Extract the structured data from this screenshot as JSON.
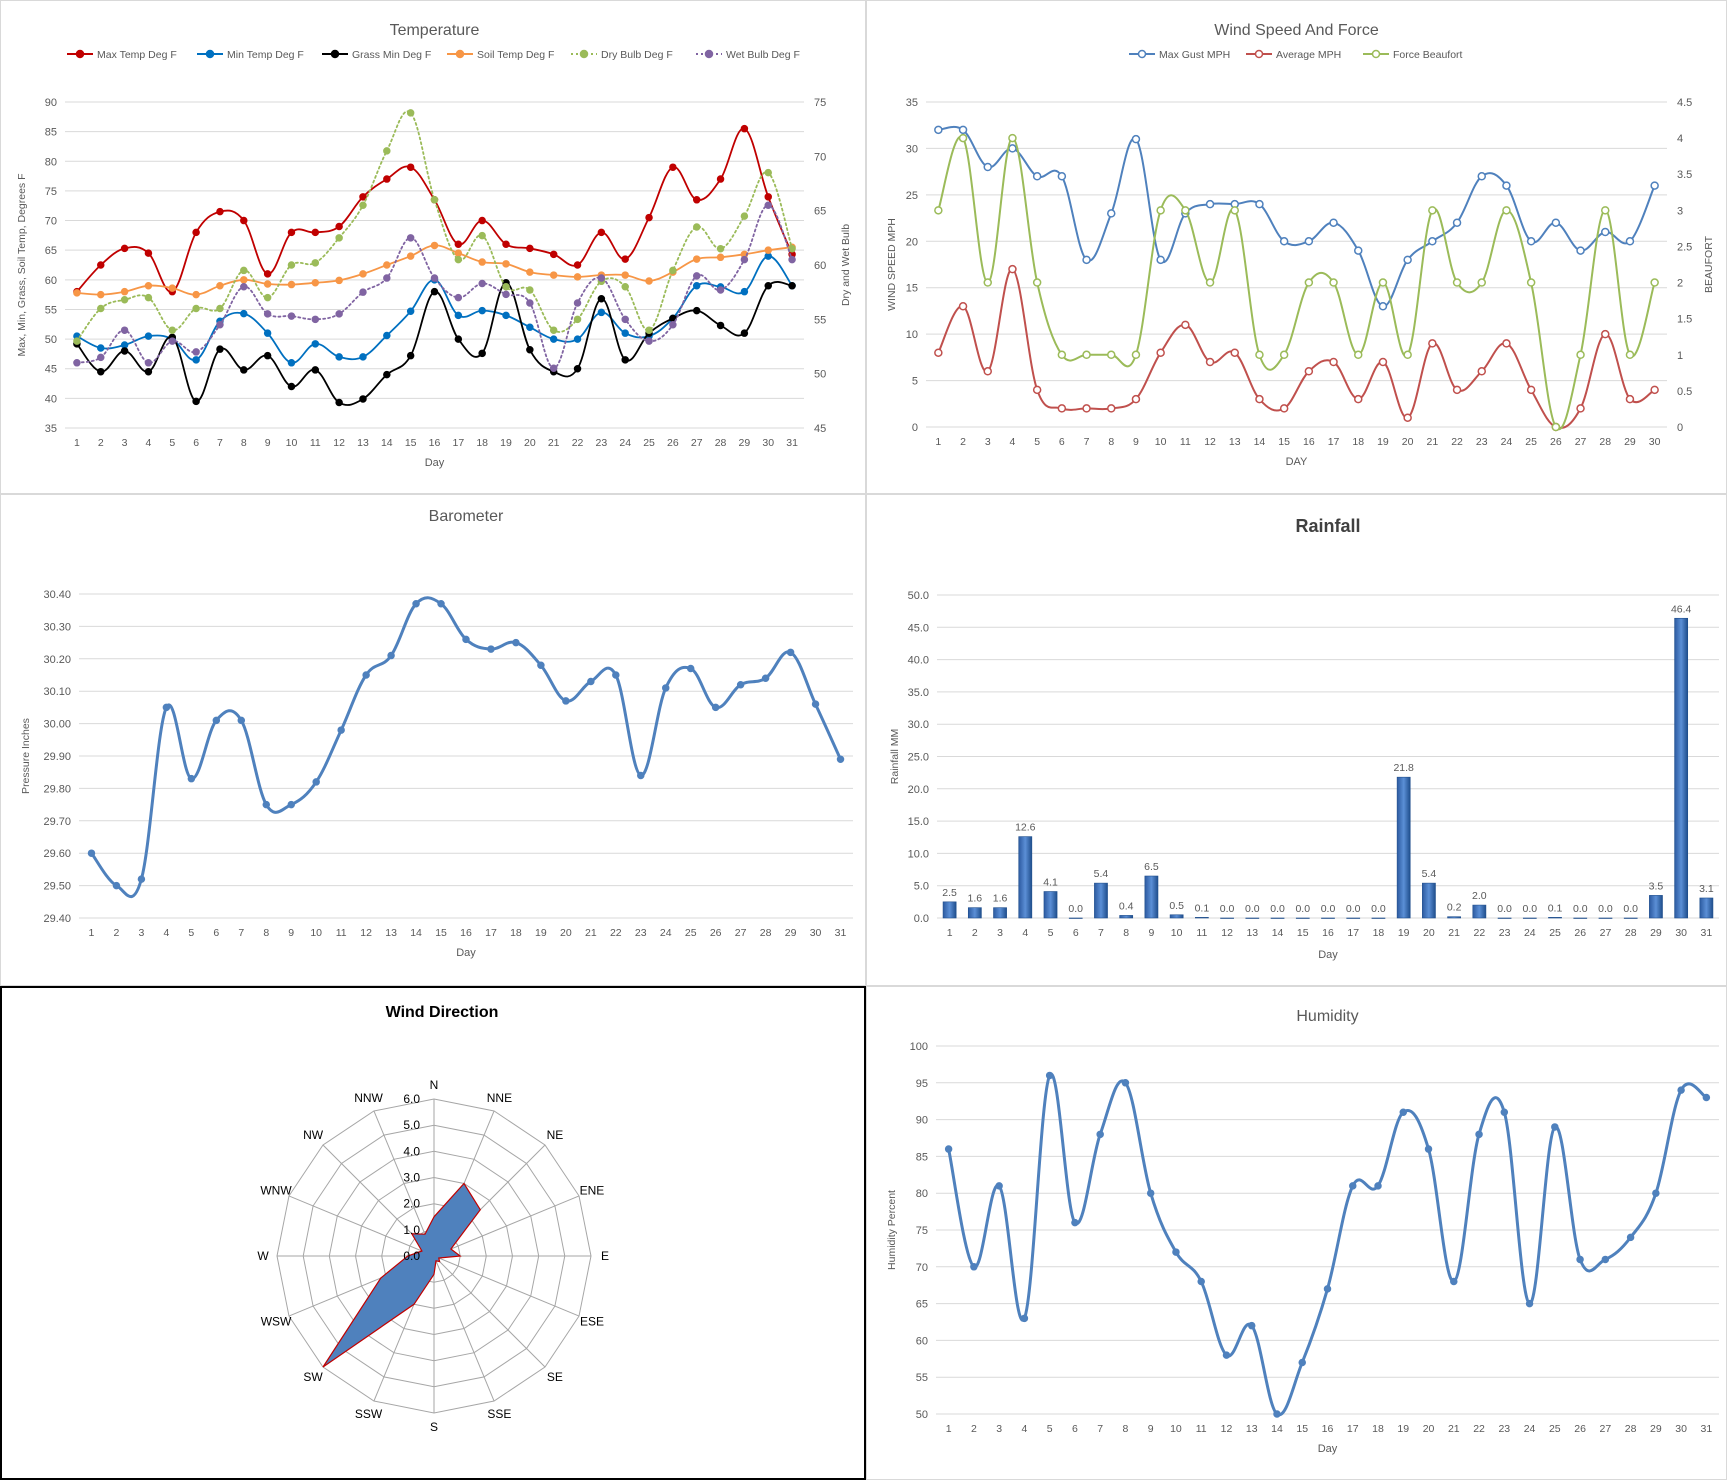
{
  "colors": {
    "grid": "#d9d9d9",
    "axis": "#bfbfbf",
    "text": "#595959",
    "blue": "#4f81bd",
    "red": "#c0504d",
    "green": "#9bbb59",
    "orange": "#f79646",
    "purple": "#8064a2",
    "black": "#000000",
    "temp_red": "#c00000",
    "temp_blue": "#0070c0"
  },
  "chart_data": [
    {
      "id": "temperature",
      "type": "line",
      "title": "Temperature",
      "xlabel": "Day",
      "ylabel": "Max, Min, Grass, Soil Temp, Degrees F",
      "y2label": "Dry and Wet Bulb",
      "x": [
        1,
        2,
        3,
        4,
        5,
        6,
        7,
        8,
        9,
        10,
        11,
        12,
        13,
        14,
        15,
        16,
        17,
        18,
        19,
        20,
        21,
        22,
        23,
        24,
        25,
        26,
        27,
        28,
        29,
        30,
        31
      ],
      "ylim": [
        35,
        90
      ],
      "yticks": [
        35,
        40,
        45,
        50,
        55,
        60,
        65,
        70,
        75,
        80,
        85,
        90
      ],
      "y2lim": [
        45,
        75
      ],
      "y2ticks": [
        45,
        50,
        55,
        60,
        65,
        70,
        75
      ],
      "legend": "top",
      "series": [
        {
          "name": "Max Temp Deg F",
          "axis": "left",
          "color": "#c00000",
          "dash": false,
          "values": [
            58,
            62.5,
            65.3,
            64.5,
            58,
            68,
            71.5,
            70,
            61,
            68,
            68,
            69,
            74,
            77,
            79,
            73.5,
            66,
            70,
            66,
            65.3,
            64.3,
            62.5,
            68,
            63.5,
            70.5,
            79,
            73.5,
            77,
            85.5,
            74,
            64.3
          ]
        },
        {
          "name": "Min Temp Deg F",
          "axis": "left",
          "color": "#0070c0",
          "dash": false,
          "values": [
            50.5,
            48.5,
            49,
            50.5,
            50,
            46.5,
            53,
            54.3,
            51,
            46,
            49.2,
            47,
            47,
            50.6,
            54.7,
            60,
            54,
            54.8,
            54,
            52,
            50,
            50,
            54.5,
            51,
            50.5,
            53.5,
            59,
            58.8,
            58,
            64,
            59
          ]
        },
        {
          "name": "Grass Min Deg F",
          "axis": "left",
          "color": "#000000",
          "dash": false,
          "values": [
            49.2,
            44.5,
            48,
            44.5,
            50.3,
            39.5,
            48.3,
            44.8,
            47.2,
            42,
            44.8,
            39.3,
            39.9,
            44,
            47.2,
            58,
            50,
            47.6,
            59.5,
            48.2,
            44.5,
            45,
            56.8,
            46.5,
            51,
            53.5,
            54.8,
            52.3,
            51,
            59,
            59
          ]
        },
        {
          "name": "Soil Temp Deg F",
          "axis": "left",
          "color": "#f79646",
          "dash": false,
          "values": [
            57.8,
            57.5,
            58,
            59,
            58.6,
            57.5,
            59,
            60,
            59.3,
            59.2,
            59.5,
            59.9,
            61,
            62.5,
            64,
            65.8,
            64.5,
            63,
            62.7,
            61.3,
            60.8,
            60.5,
            60.8,
            60.8,
            59.8,
            61.3,
            63.5,
            63.8,
            64.3,
            65,
            65.5
          ]
        },
        {
          "name": "Dry Bulb Deg F",
          "axis": "right",
          "color": "#9bbb59",
          "dash": true,
          "values": [
            53,
            56,
            56.8,
            57,
            54,
            56,
            56,
            59.5,
            57,
            60,
            60.2,
            62.5,
            65.5,
            70.5,
            74,
            66,
            60.5,
            62.7,
            58,
            57.7,
            54,
            55,
            58.5,
            58,
            54,
            59.5,
            63.5,
            61.5,
            64.5,
            68.5,
            61.5
          ]
        },
        {
          "name": "Wet Bulb Deg F",
          "axis": "right",
          "color": "#8064a2",
          "dash": true,
          "values": [
            51,
            51.5,
            54,
            51,
            53,
            52,
            54.5,
            58,
            55.5,
            55.3,
            55,
            55.5,
            57.5,
            58.8,
            62.5,
            58.8,
            57,
            58.3,
            57.3,
            56.5,
            50.5,
            56.5,
            58.8,
            55,
            53,
            54.5,
            59,
            57.7,
            60.5,
            65.5,
            60.5
          ]
        }
      ]
    },
    {
      "id": "wind",
      "type": "line",
      "title": "Wind Speed And Force",
      "xlabel": "DAY",
      "ylabel": "WIND SPEED MPH",
      "y2label": "BEAUFORT",
      "x": [
        1,
        2,
        3,
        4,
        5,
        6,
        7,
        8,
        9,
        10,
        11,
        12,
        13,
        14,
        15,
        16,
        17,
        18,
        19,
        20,
        21,
        22,
        23,
        24,
        25,
        26,
        27,
        28,
        29,
        30
      ],
      "ylim": [
        0,
        35
      ],
      "yticks": [
        0,
        5,
        10,
        15,
        20,
        25,
        30,
        35
      ],
      "y2lim": [
        0,
        4.5
      ],
      "y2ticks": [
        "0",
        "0.5",
        "1",
        "1.5",
        "2",
        "2.5",
        "3",
        "3.5",
        "4",
        "4.5"
      ],
      "legend": "top",
      "series": [
        {
          "name": "Max Gust MPH",
          "axis": "left",
          "color": "#4f81bd",
          "values": [
            32,
            32,
            28,
            30,
            27,
            27,
            18,
            23,
            31,
            18,
            23,
            24,
            24,
            24,
            20,
            20,
            22,
            19,
            13,
            18,
            20,
            22,
            27,
            26,
            20,
            22,
            19,
            21,
            20,
            26
          ]
        },
        {
          "name": "Average MPH",
          "axis": "left",
          "color": "#c0504d",
          "values": [
            8,
            13,
            6,
            17,
            4,
            2,
            2,
            2,
            3,
            8,
            11,
            7,
            8,
            3,
            2,
            6,
            7,
            3,
            7,
            1,
            9,
            4,
            6,
            9,
            4,
            0,
            2,
            10,
            3,
            4
          ]
        },
        {
          "name": "Force Beaufort",
          "axis": "right",
          "color": "#9bbb59",
          "values": [
            3,
            4,
            2,
            4,
            2,
            1,
            1,
            1,
            1,
            3,
            3,
            2,
            3,
            1,
            1,
            2,
            2,
            1,
            2,
            1,
            3,
            2,
            2,
            3,
            2,
            0,
            1,
            3,
            1,
            2
          ]
        }
      ]
    },
    {
      "id": "barometer",
      "type": "line",
      "title": "Barometer",
      "xlabel": "Day",
      "ylabel": "Pressure Inches",
      "x": [
        1,
        2,
        3,
        4,
        5,
        6,
        7,
        8,
        9,
        10,
        11,
        12,
        13,
        14,
        15,
        16,
        17,
        18,
        19,
        20,
        21,
        22,
        23,
        24,
        25,
        26,
        27,
        28,
        29,
        30,
        31
      ],
      "ylim": [
        29.4,
        30.4
      ],
      "yticks": [
        "29.40",
        "29.50",
        "29.60",
        "29.70",
        "29.80",
        "29.90",
        "30.00",
        "30.10",
        "30.20",
        "30.30",
        "30.40"
      ],
      "series": [
        {
          "name": "",
          "color": "#4f81bd",
          "values": [
            29.6,
            29.5,
            29.52,
            30.05,
            29.83,
            30.01,
            30.01,
            29.75,
            29.75,
            29.82,
            29.98,
            30.15,
            30.21,
            30.37,
            30.37,
            30.26,
            30.23,
            30.25,
            30.18,
            30.07,
            30.13,
            30.15,
            29.84,
            30.11,
            30.17,
            30.05,
            30.12,
            30.14,
            30.22,
            30.06,
            29.89
          ]
        }
      ]
    },
    {
      "id": "rainfall",
      "type": "bar",
      "title": "Rainfall",
      "xlabel": "Day",
      "ylabel": "Rainfall MM",
      "categories": [
        "1",
        "2",
        "3",
        "4",
        "5",
        "6",
        "7",
        "8",
        "9",
        "10",
        "11",
        "12",
        "13",
        "14",
        "15",
        "16",
        "17",
        "18",
        "19",
        "20",
        "21",
        "22",
        "23",
        "24",
        "25",
        "26",
        "27",
        "28",
        "29",
        "30",
        "31"
      ],
      "ylim": [
        0,
        50
      ],
      "yticks": [
        "0.0",
        "5.0",
        "10.0",
        "15.0",
        "20.0",
        "25.0",
        "30.0",
        "35.0",
        "40.0",
        "45.0",
        "50.0"
      ],
      "values": [
        2.5,
        1.6,
        1.6,
        12.6,
        4.1,
        0.0,
        5.4,
        0.4,
        6.5,
        0.5,
        0.1,
        0.0,
        0.0,
        0.0,
        0.0,
        0.0,
        0.0,
        0.0,
        21.8,
        5.4,
        0.2,
        2.0,
        0.0,
        0.0,
        0.1,
        0.0,
        0.0,
        0.0,
        3.5,
        46.4,
        3.1
      ],
      "labels": [
        "2.5",
        "1.6",
        "1.6",
        "12.6",
        "4.1",
        "0.0",
        "5.4",
        "0.4",
        "6.5",
        "0.5",
        "0.1",
        "0.0",
        "0.0",
        "0.0",
        "0.0",
        "0.0",
        "0.0",
        "0.0",
        "21.8",
        "5.4",
        "0.2",
        "2.0",
        "0.0",
        "0.0",
        "0.1",
        "0.0",
        "0.0",
        "0.0",
        "3.5",
        "46.4",
        "3.1"
      ]
    },
    {
      "id": "wind-direction",
      "type": "radar",
      "title": "Wind Direction",
      "directions": [
        "N",
        "NNE",
        "NE",
        "ENE",
        "E",
        "ESE",
        "SE",
        "SSE",
        "S",
        "SSW",
        "SW",
        "WSW",
        "W",
        "WNW",
        "NW",
        "NNW"
      ],
      "rlim": [
        0,
        6
      ],
      "rticks": [
        "0.0",
        "1.0",
        "2.0",
        "3.0",
        "4.0",
        "5.0",
        "6.0"
      ],
      "values": [
        1.5,
        3.0,
        2.5,
        0.7,
        1.0,
        0.2,
        0.3,
        0.2,
        0.7,
        2.0,
        6.0,
        2.2,
        1.0,
        0.5,
        1.2,
        0.9
      ]
    },
    {
      "id": "humidity",
      "type": "line",
      "title": "Humidity",
      "xlabel": "Day",
      "ylabel": "Humidity Percent",
      "x": [
        1,
        2,
        3,
        4,
        5,
        6,
        7,
        8,
        9,
        10,
        11,
        12,
        13,
        14,
        15,
        16,
        17,
        18,
        19,
        20,
        21,
        22,
        23,
        24,
        25,
        26,
        27,
        28,
        29,
        30,
        31
      ],
      "ylim": [
        50,
        100
      ],
      "yticks": [
        50,
        55,
        60,
        65,
        70,
        75,
        80,
        85,
        90,
        95,
        100
      ],
      "series": [
        {
          "name": "",
          "color": "#4f81bd",
          "values": [
            86,
            70,
            81,
            63,
            96,
            76,
            88,
            95,
            80,
            72,
            68,
            58,
            62,
            50,
            57,
            67,
            81,
            81,
            91,
            86,
            68,
            88,
            91,
            65,
            89,
            71,
            71,
            74,
            80,
            94,
            93
          ]
        }
      ]
    }
  ]
}
